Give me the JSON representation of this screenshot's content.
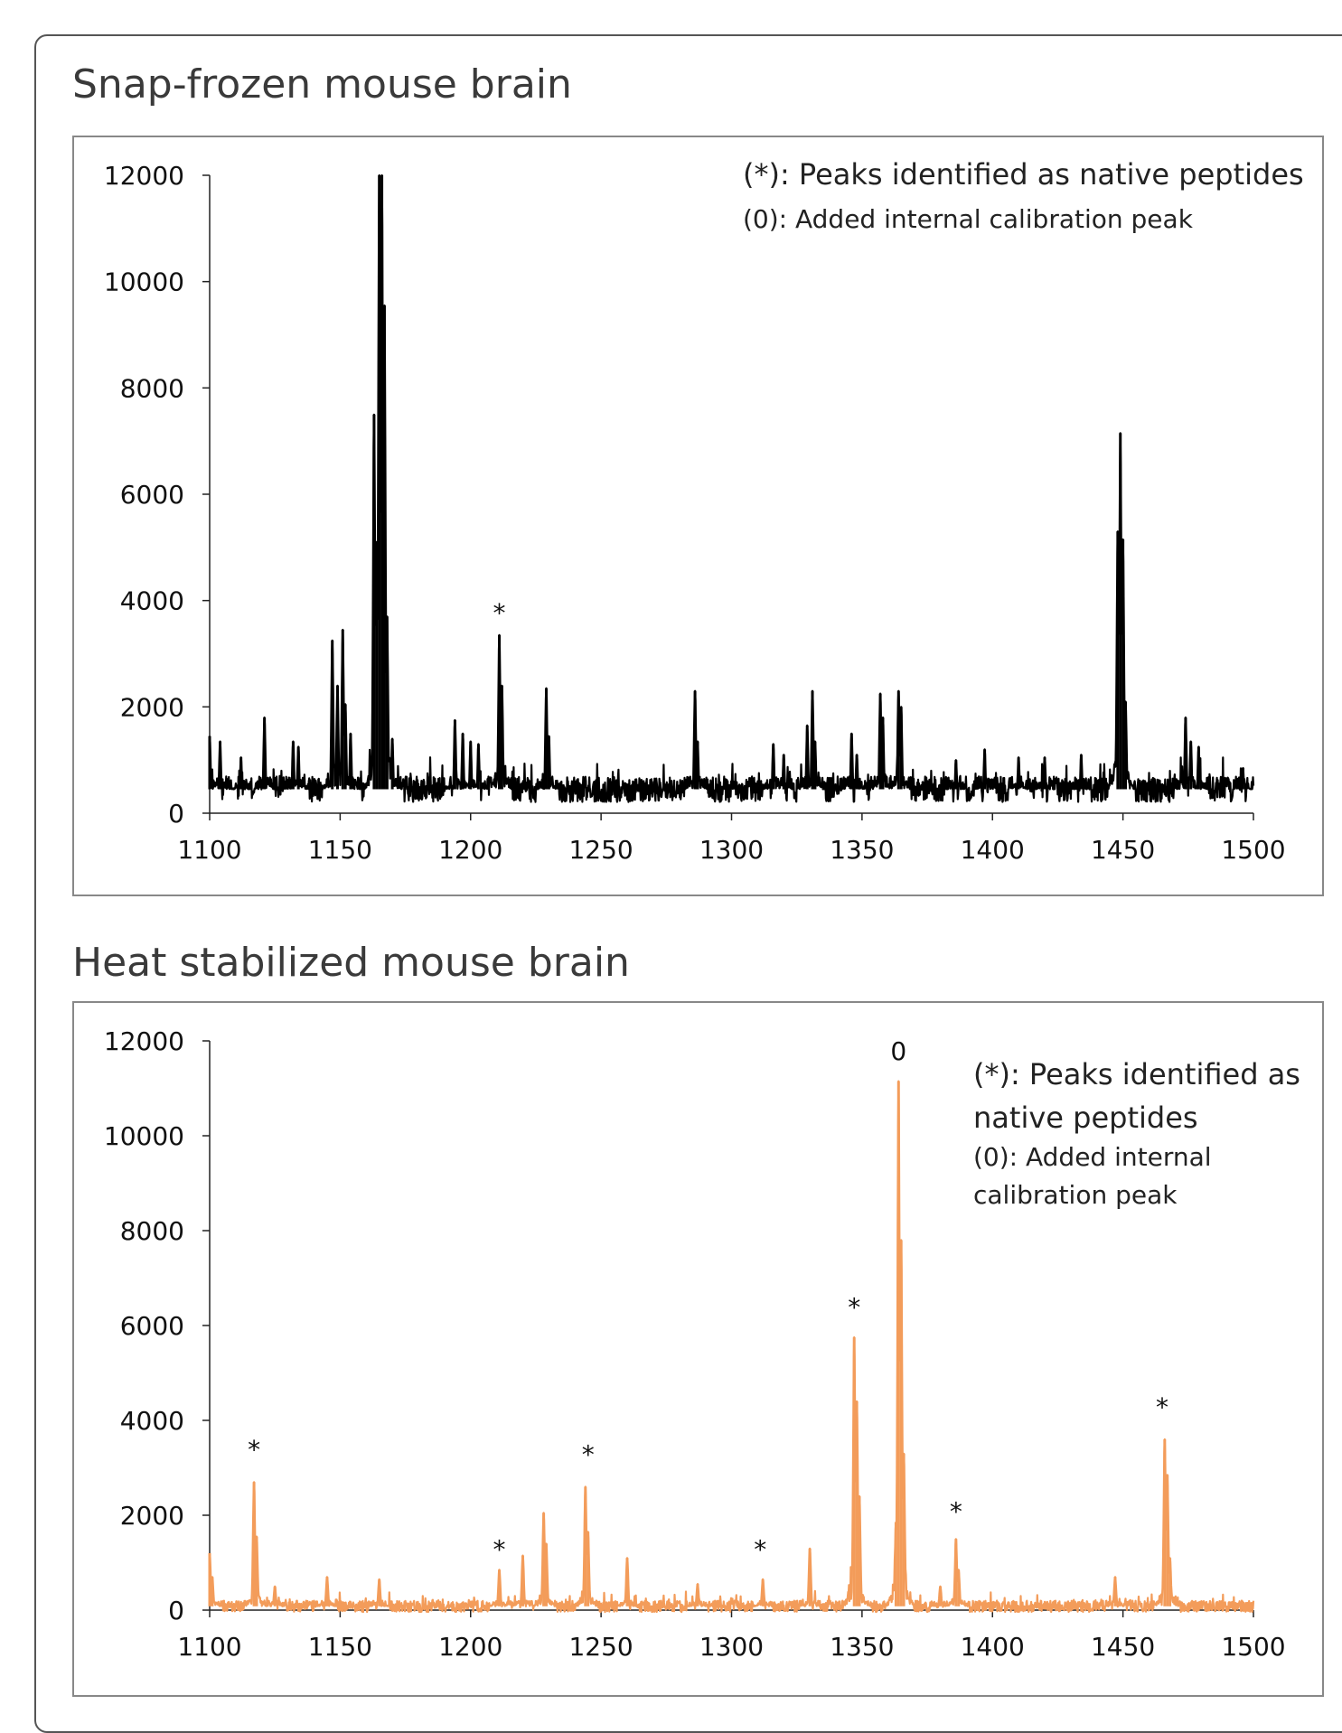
{
  "panels": [
    {
      "title": "Snap-frozen mouse brain",
      "legend_lines": [
        "(*): Peaks identified as native peptides",
        "(0): Added internal calibration peak"
      ],
      "color": "#000000"
    },
    {
      "title": "Heat stabilized mouse brain",
      "legend_lines": [
        "(*): Peaks identified as",
        "native peptides",
        "(0): Added internal",
        "calibration peak"
      ],
      "color": "#f39c5a"
    }
  ],
  "chart_data": [
    {
      "type": "line",
      "title": "Snap-frozen mouse brain",
      "xlabel": "",
      "ylabel": "",
      "xlim": [
        1100,
        1500
      ],
      "ylim": [
        0,
        12000
      ],
      "x_ticks": [
        "1100",
        "1150",
        "1200",
        "1250",
        "1300",
        "1350",
        "1400",
        "1450",
        "1500"
      ],
      "y_ticks": [
        "0",
        "2000",
        "4000",
        "6000",
        "8000",
        "10000",
        "12000"
      ],
      "grid": false,
      "legend": "top-right",
      "baseline": 450,
      "noise": 300,
      "peaks": [
        {
          "x": 1100,
          "y": 1450
        },
        {
          "x": 1104,
          "y": 1350
        },
        {
          "x": 1112,
          "y": 1050
        },
        {
          "x": 1121,
          "y": 1800
        },
        {
          "x": 1132,
          "y": 1350
        },
        {
          "x": 1134,
          "y": 1250
        },
        {
          "x": 1147,
          "y": 3250
        },
        {
          "x": 1149,
          "y": 2400
        },
        {
          "x": 1151,
          "y": 3450
        },
        {
          "x": 1152,
          "y": 2050
        },
        {
          "x": 1154,
          "y": 1500
        },
        {
          "x": 1163,
          "y": 7500
        },
        {
          "x": 1164,
          "y": 5100
        },
        {
          "x": 1165,
          "y": 12000
        },
        {
          "x": 1166,
          "y": 12000
        },
        {
          "x": 1167,
          "y": 9550
        },
        {
          "x": 1168,
          "y": 3700
        },
        {
          "x": 1170,
          "y": 1400
        },
        {
          "x": 1194,
          "y": 1750
        },
        {
          "x": 1197,
          "y": 1500
        },
        {
          "x": 1200,
          "y": 1350
        },
        {
          "x": 1203,
          "y": 1300
        },
        {
          "x": 1211,
          "y": 3350
        },
        {
          "x": 1212,
          "y": 2400
        },
        {
          "x": 1229,
          "y": 2350
        },
        {
          "x": 1230,
          "y": 1450
        },
        {
          "x": 1286,
          "y": 2300
        },
        {
          "x": 1287,
          "y": 1350
        },
        {
          "x": 1316,
          "y": 1300
        },
        {
          "x": 1320,
          "y": 1100
        },
        {
          "x": 1329,
          "y": 1650
        },
        {
          "x": 1331,
          "y": 2300
        },
        {
          "x": 1332,
          "y": 1350
        },
        {
          "x": 1346,
          "y": 1500
        },
        {
          "x": 1348,
          "y": 1100
        },
        {
          "x": 1357,
          "y": 2250
        },
        {
          "x": 1358,
          "y": 1800
        },
        {
          "x": 1364,
          "y": 2300
        },
        {
          "x": 1365,
          "y": 2000
        },
        {
          "x": 1386,
          "y": 1000
        },
        {
          "x": 1397,
          "y": 1200
        },
        {
          "x": 1410,
          "y": 1050
        },
        {
          "x": 1420,
          "y": 1050
        },
        {
          "x": 1434,
          "y": 1100
        },
        {
          "x": 1448,
          "y": 5300
        },
        {
          "x": 1449,
          "y": 7150
        },
        {
          "x": 1450,
          "y": 5150
        },
        {
          "x": 1451,
          "y": 2100
        },
        {
          "x": 1474,
          "y": 1800
        },
        {
          "x": 1476,
          "y": 1350
        },
        {
          "x": 1479,
          "y": 1250
        },
        {
          "x": 1496,
          "y": 850
        }
      ],
      "annotations": [
        {
          "text": "*",
          "x": 1211,
          "y": 3600
        }
      ]
    },
    {
      "type": "line",
      "title": "Heat stabilized mouse brain",
      "xlabel": "",
      "ylabel": "",
      "xlim": [
        1100,
        1500
      ],
      "ylim": [
        0,
        12000
      ],
      "x_ticks": [
        "1100",
        "1150",
        "1200",
        "1250",
        "1300",
        "1350",
        "1400",
        "1450",
        "1500"
      ],
      "y_ticks": [
        "0",
        "2000",
        "4000",
        "6000",
        "8000",
        "10000",
        "12000"
      ],
      "grid": false,
      "legend": "top-right",
      "baseline": 80,
      "noise": 150,
      "peaks": [
        {
          "x": 1100,
          "y": 1200
        },
        {
          "x": 1101,
          "y": 700
        },
        {
          "x": 1117,
          "y": 2700
        },
        {
          "x": 1118,
          "y": 1550
        },
        {
          "x": 1125,
          "y": 500
        },
        {
          "x": 1145,
          "y": 700
        },
        {
          "x": 1165,
          "y": 650
        },
        {
          "x": 1211,
          "y": 850
        },
        {
          "x": 1220,
          "y": 1150
        },
        {
          "x": 1228,
          "y": 2050
        },
        {
          "x": 1229,
          "y": 1400
        },
        {
          "x": 1244,
          "y": 2600
        },
        {
          "x": 1245,
          "y": 1650
        },
        {
          "x": 1260,
          "y": 1100
        },
        {
          "x": 1287,
          "y": 550
        },
        {
          "x": 1312,
          "y": 650
        },
        {
          "x": 1330,
          "y": 1300
        },
        {
          "x": 1347,
          "y": 5750
        },
        {
          "x": 1348,
          "y": 4400
        },
        {
          "x": 1349,
          "y": 2400
        },
        {
          "x": 1363,
          "y": 1850
        },
        {
          "x": 1364,
          "y": 11150
        },
        {
          "x": 1365,
          "y": 7800
        },
        {
          "x": 1366,
          "y": 3300
        },
        {
          "x": 1380,
          "y": 500
        },
        {
          "x": 1386,
          "y": 1500
        },
        {
          "x": 1387,
          "y": 850
        },
        {
          "x": 1447,
          "y": 700
        },
        {
          "x": 1466,
          "y": 3600
        },
        {
          "x": 1467,
          "y": 2850
        },
        {
          "x": 1468,
          "y": 1100
        }
      ],
      "annotations": [
        {
          "text": "*",
          "x": 1117,
          "y": 3200
        },
        {
          "text": "*",
          "x": 1211,
          "y": 1100
        },
        {
          "text": "*",
          "x": 1245,
          "y": 3100
        },
        {
          "text": "*",
          "x": 1311,
          "y": 1100
        },
        {
          "text": "*",
          "x": 1347,
          "y": 6200
        },
        {
          "text": "0",
          "x": 1364,
          "y": 11600
        },
        {
          "text": "*",
          "x": 1386,
          "y": 1900
        },
        {
          "text": "*",
          "x": 1465,
          "y": 4100
        }
      ]
    }
  ]
}
